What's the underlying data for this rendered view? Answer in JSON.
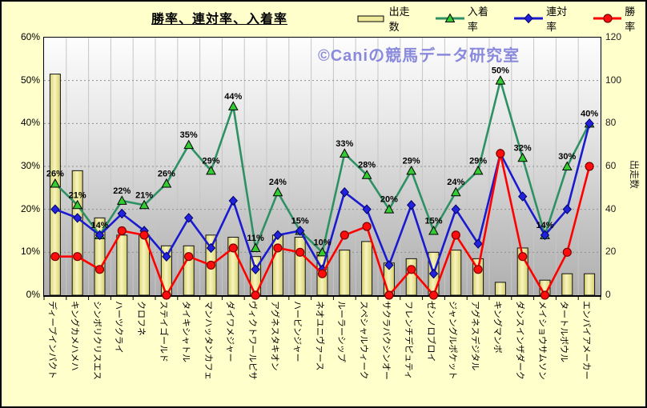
{
  "title": "勝率、連対率、入着率",
  "watermark": "©Caniの競馬データ研究室",
  "legend": [
    {
      "label": "出走数",
      "swatch": "bar"
    },
    {
      "label": "入着率",
      "swatch": "triangle"
    },
    {
      "label": "連対率",
      "swatch": "diamond"
    },
    {
      "label": "勝率",
      "swatch": "circle"
    }
  ],
  "axes": {
    "left_ticks": [
      "60%",
      "50%",
      "40%",
      "30%",
      "20%",
      "10%",
      "0%"
    ],
    "right_ticks": [
      "120",
      "100",
      "80",
      "60",
      "40",
      "20",
      "0"
    ],
    "right_axis_title": "出走数"
  },
  "colors": {
    "background": "#FFFFCC",
    "bar_fill": "#EFEB9A",
    "bar_edge": "#D8D170",
    "bar_border": "#111111",
    "line_place": "#2E9163",
    "marker_place": "#33CC33",
    "line_quinella": "#1A1ACF",
    "marker_quinella": "#2222DD",
    "line_win": "#FF0000",
    "marker_win": "#FF0D0D",
    "watermark": "#8A8ADC",
    "grid_vertical": "#C6C6C6",
    "grid_horizontal": "#909090"
  },
  "chart_data": {
    "type": "bar",
    "subtype": "bar+line combo, dual axis",
    "categories": [
      "ディープインパクト",
      "キングカメハメハ",
      "シンボリクリスエス",
      "ハーツクライ",
      "クロフネ",
      "ステイゴールド",
      "タイキシャトル",
      "マンハッタンカフェ",
      "ダイワメジャー",
      "ヴィクトワールピサ",
      "アグネスタキオン",
      "ハービンジャー",
      "ネオユニヴァース",
      "ルーラーシップ",
      "スペシャルウィーク",
      "サクラバクシンオー",
      "フレンチデピュティ",
      "ゼンノロブロイ",
      "ジャングルポケット",
      "アグネスデジタル",
      "キングマンボ",
      "ダンスインザダーク",
      "メイショウサムソン",
      "タートルボウル",
      "エンパイアメーカー"
    ],
    "series": [
      {
        "name": "出走数",
        "type": "bar",
        "axis": "right",
        "values": [
          103,
          58,
          36,
          28,
          28,
          23,
          23,
          28,
          27,
          18,
          28,
          27,
          20,
          21,
          25,
          15,
          17,
          20,
          21,
          17,
          6,
          22,
          7,
          10,
          10
        ]
      },
      {
        "name": "入着率",
        "type": "line",
        "marker": "triangle",
        "axis": "left",
        "values": [
          26,
          21,
          14,
          22,
          21,
          26,
          35,
          29,
          44,
          11,
          24,
          15,
          10,
          33,
          28,
          20,
          29,
          15,
          24,
          29,
          50,
          32,
          14,
          30,
          40
        ],
        "labels": [
          "26%",
          "21%",
          "14%",
          "22%",
          "21%",
          "26%",
          "35%",
          "29%",
          "44%",
          "11%",
          "24%",
          "15%",
          "10%",
          "33%",
          "28%",
          "20%",
          "29%",
          "15%",
          "24%",
          "29%",
          "50%",
          "32%",
          "14%",
          "30%",
          "40%"
        ]
      },
      {
        "name": "連対率",
        "type": "line",
        "marker": "diamond",
        "axis": "left",
        "values": [
          20,
          18,
          14,
          19,
          15,
          9,
          18,
          11,
          22,
          6,
          14,
          15,
          6,
          24,
          20,
          7,
          21,
          5,
          20,
          12,
          33,
          23,
          14,
          20,
          40
        ]
      },
      {
        "name": "勝率",
        "type": "line",
        "marker": "circle",
        "axis": "left",
        "values": [
          9,
          9,
          6,
          15,
          14,
          0,
          9,
          7,
          11,
          0,
          11,
          10,
          5,
          14,
          16,
          0,
          6,
          0,
          14,
          6,
          33,
          9,
          0,
          10,
          30
        ]
      }
    ],
    "title": "勝率、連対率、入着率",
    "xlabel": "",
    "ylabel_right": "出走数",
    "left_axis_range": [
      0,
      60
    ],
    "right_axis_range": [
      0,
      120
    ],
    "grid": true,
    "legend_position": "top-right"
  }
}
